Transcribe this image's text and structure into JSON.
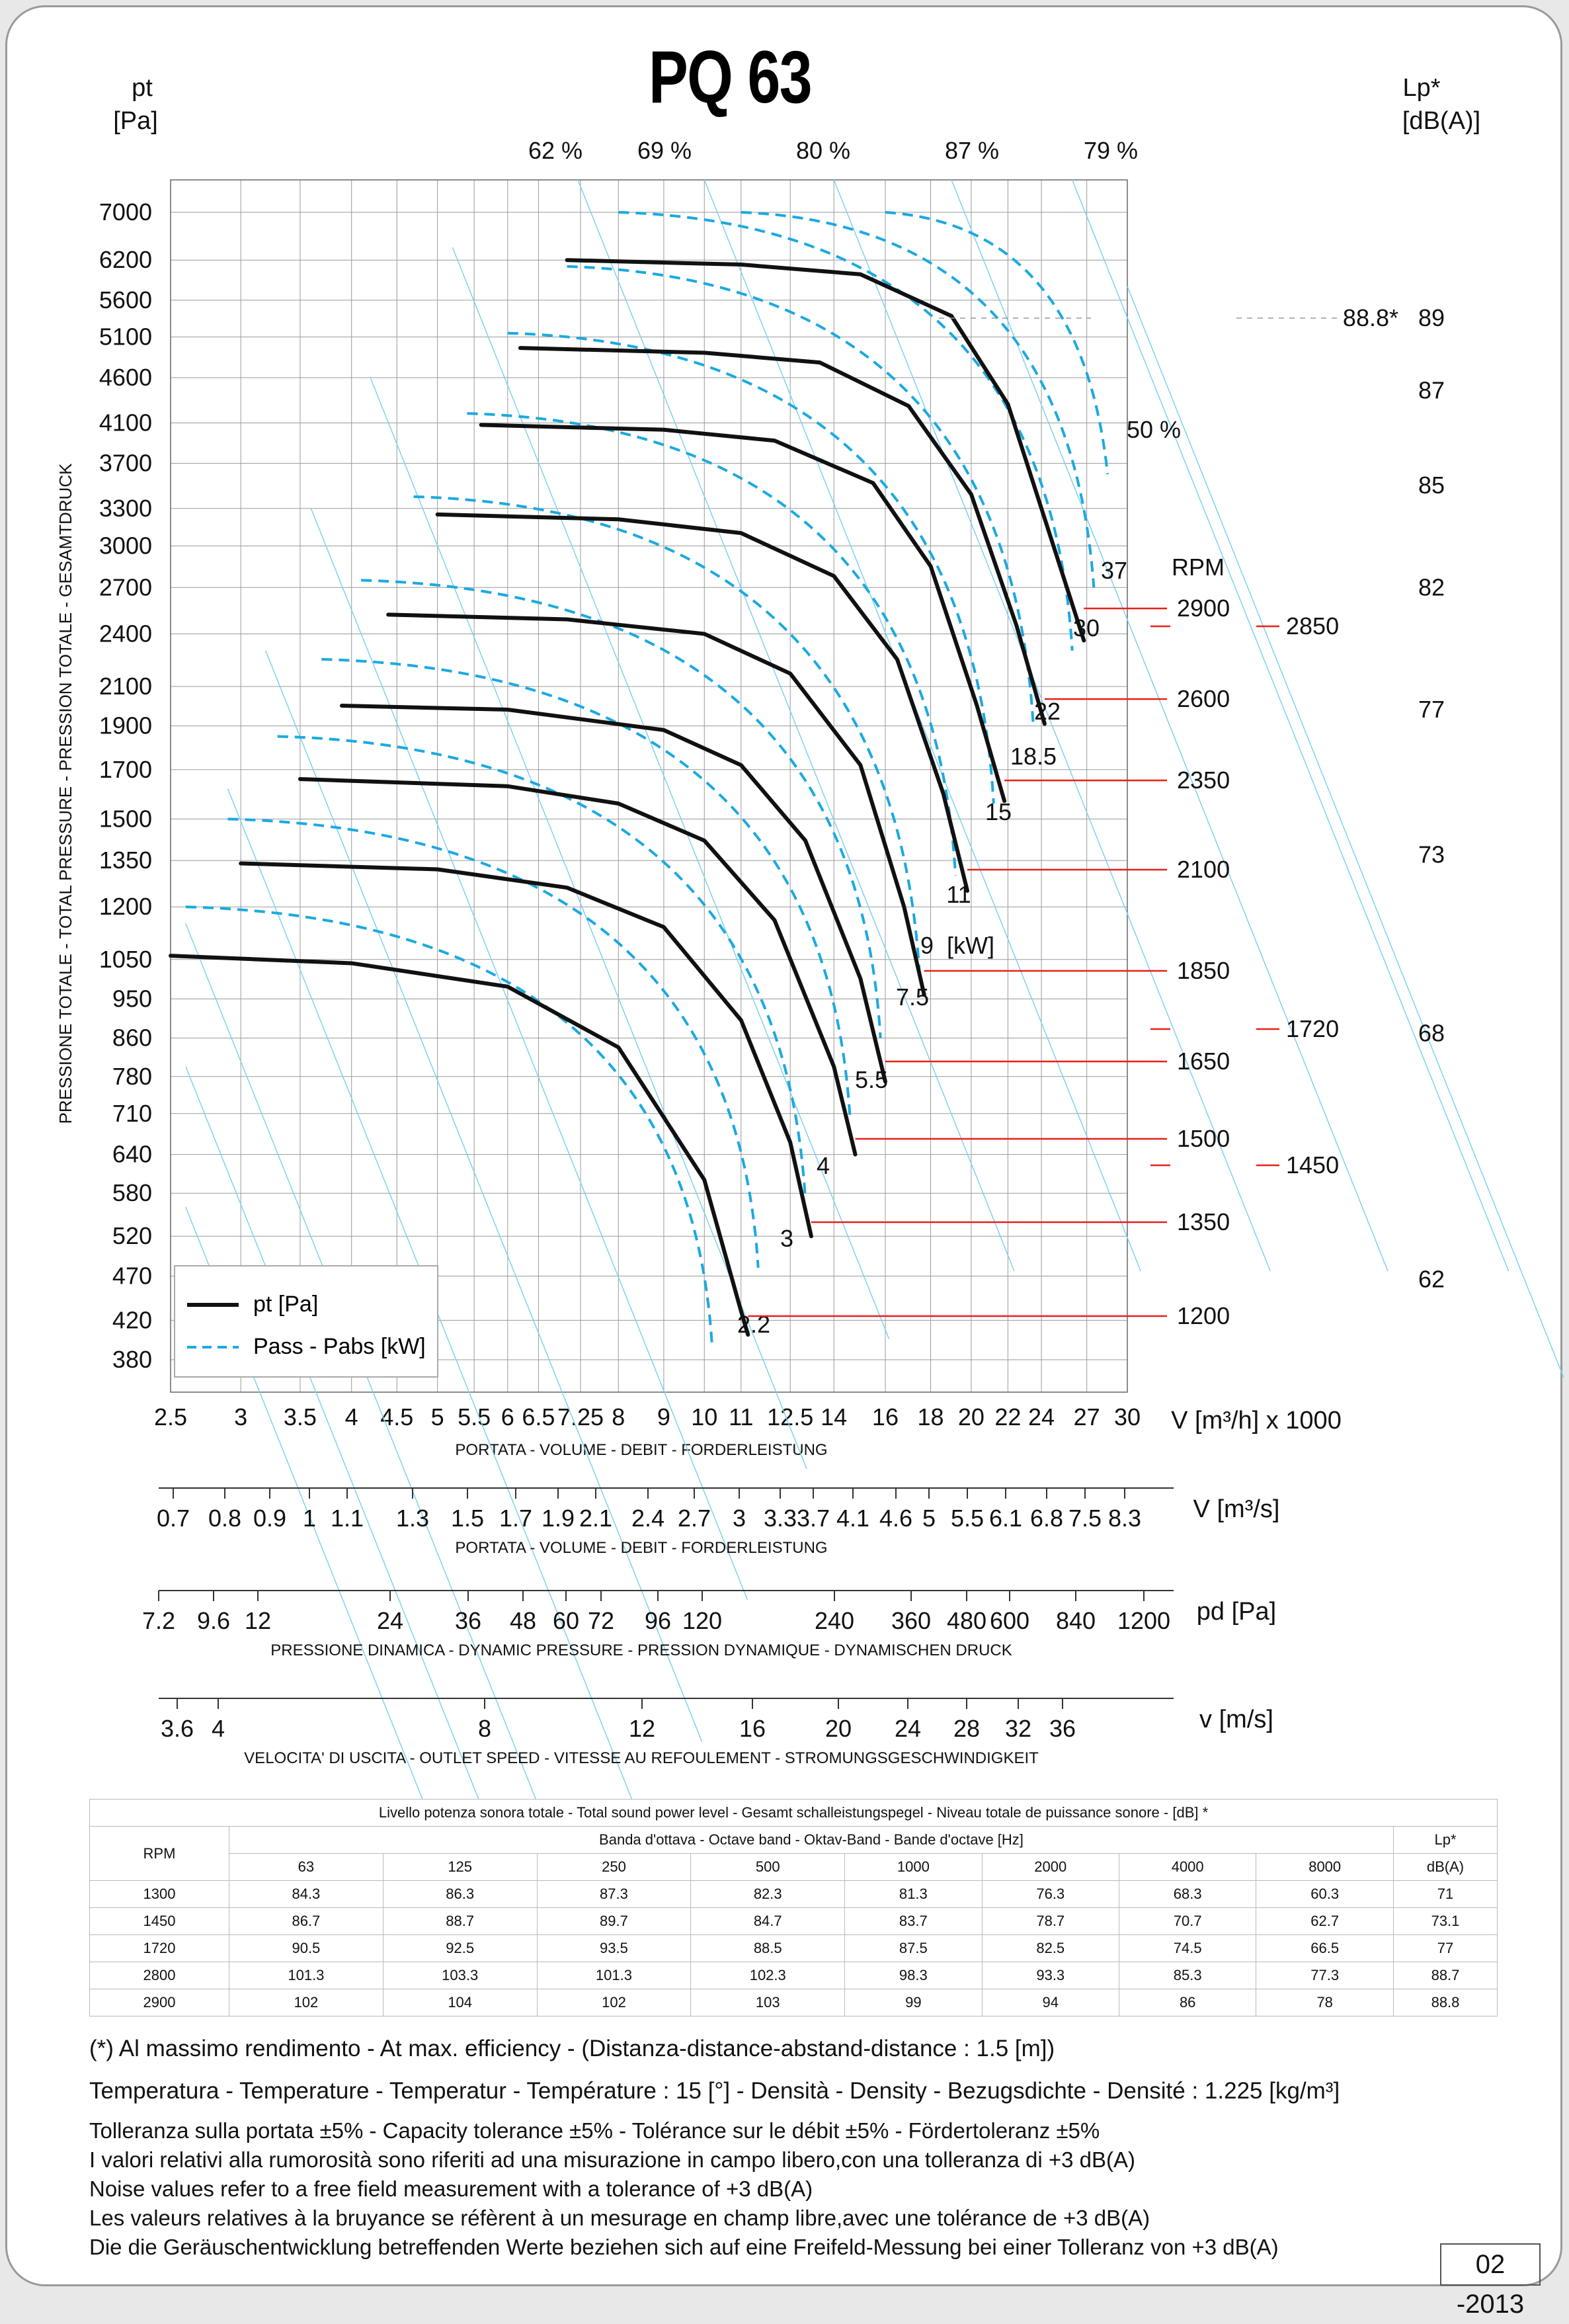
{
  "title": "PQ 63",
  "left_axis": {
    "unit_top": "pt",
    "unit_bottom": "[Pa]",
    "label": "PRESSIONE TOTALE - TOTAL PRESSURE - PRESSION TOTALE - GESAMTDRUCK"
  },
  "right_axis": {
    "unit_top": "Lp*",
    "unit_bottom": "[dB(A)]"
  },
  "legend": {
    "solid": "pt [Pa]",
    "dashed": "Pass - Pabs [kW]"
  },
  "rpm_header": "RPM",
  "kw_unit": "[kW]",
  "colors": {
    "pressure_curve": "#111111",
    "power_curve": "#1ba9e0",
    "efficiency_line": "#7fd0f2",
    "rpm_line": "#e8201a",
    "grid": "#9a9a9a"
  },
  "chart_data": {
    "type": "line",
    "title": "PQ 63",
    "x_axis": {
      "label": "PORTATA - VOLUME - DEBIT - FORDERLEISTUNG",
      "unit": "V [m³/h]  x 1000",
      "scale": "log",
      "ticks": [
        "2.5",
        "3",
        "3.5",
        "4",
        "4.5",
        "5",
        "5.5",
        "6",
        "6.5",
        "7.25",
        "8",
        "9",
        "10",
        "11",
        "12.5",
        "14",
        "16",
        "18",
        "20",
        "22",
        "24",
        "27",
        "30"
      ]
    },
    "y_axis": {
      "label": "PRESSIONE TOTALE - TOTAL PRESSURE - PRESSION TOTALE - GESAMTDRUCK",
      "unit": "pt [Pa]",
      "scale": "log",
      "ticks": [
        "7000",
        "6200",
        "5600",
        "5100",
        "4600",
        "4100",
        "3700",
        "3300",
        "3000",
        "2700",
        "2400",
        "2100",
        "1900",
        "1700",
        "1500",
        "1350",
        "1200",
        "1050",
        "950",
        "860",
        "780",
        "710",
        "640",
        "580",
        "520",
        "470",
        "420",
        "380"
      ]
    },
    "lp_axis": {
      "unit": "Lp* [dB(A)]",
      "ticks": [
        {
          "label": "89",
          "pt": 5350
        },
        {
          "label": "87",
          "pt": 4450
        },
        {
          "label": "85",
          "pt": 3500
        },
        {
          "label": "82",
          "pt": 2700
        },
        {
          "label": "77",
          "pt": 1980
        },
        {
          "label": "73",
          "pt": 1370
        },
        {
          "label": "68",
          "pt": 870
        },
        {
          "label": "62",
          "pt": 466
        }
      ],
      "max_efficiency_note": "88.8*"
    },
    "series": [
      {
        "rpm": "1200",
        "points": [
          [
            2.5,
            1060
          ],
          [
            4,
            1040
          ],
          [
            6,
            980
          ],
          [
            8,
            840
          ],
          [
            10,
            600
          ],
          [
            11,
            430
          ],
          [
            11.2,
            405
          ]
        ]
      },
      {
        "rpm": "1350",
        "points": [
          [
            3,
            1340
          ],
          [
            5,
            1320
          ],
          [
            7,
            1260
          ],
          [
            9,
            1140
          ],
          [
            11,
            900
          ],
          [
            12.5,
            660
          ],
          [
            13.2,
            520
          ]
        ]
      },
      {
        "rpm": "1500",
        "points": [
          [
            3.5,
            1660
          ],
          [
            6,
            1630
          ],
          [
            8,
            1560
          ],
          [
            10,
            1420
          ],
          [
            12,
            1160
          ],
          [
            14,
            800
          ],
          [
            14.8,
            640
          ]
        ]
      },
      {
        "rpm": "1650",
        "points": [
          [
            3.9,
            2000
          ],
          [
            6,
            1980
          ],
          [
            9,
            1880
          ],
          [
            11,
            1720
          ],
          [
            13,
            1420
          ],
          [
            15,
            1000
          ],
          [
            16,
            770
          ]
        ]
      },
      {
        "rpm": "1850",
        "points": [
          [
            4.4,
            2520
          ],
          [
            7,
            2490
          ],
          [
            10,
            2400
          ],
          [
            12.5,
            2170
          ],
          [
            15,
            1720
          ],
          [
            16.8,
            1200
          ],
          [
            17.7,
            960
          ]
        ]
      },
      {
        "rpm": "2100",
        "points": [
          [
            5,
            3250
          ],
          [
            8,
            3210
          ],
          [
            11,
            3100
          ],
          [
            14,
            2780
          ],
          [
            16.5,
            2250
          ],
          [
            18.6,
            1600
          ],
          [
            19.8,
            1250
          ]
        ]
      },
      {
        "rpm": "2350",
        "points": [
          [
            5.6,
            4080
          ],
          [
            9,
            4030
          ],
          [
            12,
            3920
          ],
          [
            15.5,
            3520
          ],
          [
            18,
            2850
          ],
          [
            20.3,
            2000
          ],
          [
            21.8,
            1570
          ]
        ]
      },
      {
        "rpm": "2600",
        "points": [
          [
            6.2,
            4960
          ],
          [
            10,
            4900
          ],
          [
            13.5,
            4780
          ],
          [
            17,
            4280
          ],
          [
            20,
            3420
          ],
          [
            22.5,
            2450
          ],
          [
            24.2,
            1910
          ]
        ]
      },
      {
        "rpm": "2900",
        "points": [
          [
            7,
            6200
          ],
          [
            11,
            6130
          ],
          [
            15,
            5980
          ],
          [
            19,
            5380
          ],
          [
            22,
            4300
          ],
          [
            24.5,
            3100
          ],
          [
            26.8,
            2360
          ]
        ]
      }
    ],
    "power_labels": [
      "2.2",
      "3",
      "4",
      "5.5",
      "7.5",
      "9",
      "11",
      "15",
      "18.5",
      "22",
      "30",
      "37"
    ],
    "efficiency_labels": [
      "62 %",
      "69 %",
      "80 %",
      "87 %",
      "79 %",
      "50 %"
    ],
    "rpm_labels": [
      "2900",
      "2600",
      "2350",
      "2100",
      "1850",
      "1650",
      "1500",
      "1350",
      "1200"
    ],
    "rpm_extra": [
      "2850",
      "1720",
      "1450"
    ]
  },
  "secondary_axes": {
    "flow_m3s": {
      "unit": "V  [m³/s]",
      "label": "PORTATA - VOLUME - DEBIT - FORDERLEISTUNG",
      "ticks": [
        "0.7",
        "0.8",
        "0.9",
        "1",
        "1.1",
        "1.3",
        "1.5",
        "1.7",
        "1.9",
        "2.1",
        "2.4",
        "2.7",
        "3",
        "3.3",
        "3.7",
        "4.1",
        "4.6",
        "5",
        "5.5",
        "6.1",
        "6.8",
        "7.5",
        "8.3"
      ]
    },
    "dyn_pressure": {
      "unit": "pd  [Pa]",
      "label": "PRESSIONE DINAMICA - DYNAMIC PRESSURE - PRESSION DYNAMIQUE - DYNAMISCHEN DRUCK",
      "ticks": [
        "7.2",
        "9.6",
        "12",
        "24",
        "36",
        "48",
        "60",
        "72",
        "96",
        "120",
        "240",
        "360",
        "480",
        "600",
        "840",
        "1200"
      ]
    },
    "velocity": {
      "unit": "v  [m/s]",
      "label": "VELOCITA' DI USCITA - OUTLET SPEED - VITESSE AU REFOULEMENT - STROMUNGSGESCHWINDIGKEIT",
      "ticks": [
        "3.6",
        "4",
        "8",
        "12",
        "16",
        "20",
        "24",
        "28",
        "32",
        "36"
      ]
    }
  },
  "sound_table": {
    "caption": "Livello potenza sonora totale - Total sound power level - Gesamt schalleistungspegel - Niveau totale de puissance sonore - [dB]   *",
    "band_caption": "Banda d'ottava - Octave band - Oktav-Band - Bande d'octave [Hz]",
    "rpm_header": "RPM",
    "lp_header": "Lp*",
    "lp_unit": "dB(A)",
    "bands": [
      "63",
      "125",
      "250",
      "500",
      "1000",
      "2000",
      "4000",
      "8000"
    ],
    "rows": [
      {
        "rpm": "1300",
        "values": [
          "84.3",
          "86.3",
          "87.3",
          "82.3",
          "81.3",
          "76.3",
          "68.3",
          "60.3"
        ],
        "lp": "71"
      },
      {
        "rpm": "1450",
        "values": [
          "86.7",
          "88.7",
          "89.7",
          "84.7",
          "83.7",
          "78.7",
          "70.7",
          "62.7"
        ],
        "lp": "73.1"
      },
      {
        "rpm": "1720",
        "values": [
          "90.5",
          "92.5",
          "93.5",
          "88.5",
          "87.5",
          "82.5",
          "74.5",
          "66.5"
        ],
        "lp": "77"
      },
      {
        "rpm": "2800",
        "values": [
          "101.3",
          "103.3",
          "101.3",
          "102.3",
          "98.3",
          "93.3",
          "85.3",
          "77.3"
        ],
        "lp": "88.7"
      },
      {
        "rpm": "2900",
        "values": [
          "102",
          "104",
          "102",
          "103",
          "99",
          "94",
          "86",
          "78"
        ],
        "lp": "88.8"
      }
    ]
  },
  "notes": {
    "efficiency": "(*) Al massimo rendimento - At max. efficiency - (Distanza-distance-abstand-distance : 1.5 [m])",
    "conditions": "Temperatura - Temperature - Temperatur - Température : 15 [°]  -  Densità - Density - Bezugsdichte - Densité : 1.225 [kg/m³]",
    "tolerance": "Tolleranza sulla portata  ±5% - Capacity tolerance ±5% - Tolérance sur le débit ±5% - Fördertoleranz ±5%",
    "noise_it": "I valori relativi alla rumorosità sono riferiti ad una misurazione in campo libero,con una tolleranza di +3 dB(A)",
    "noise_en": "Noise values refer to a free field measurement with a tolerance of +3 dB(A)",
    "noise_fr": "Les valeurs relatives à la bruyance se réfèrent à un mesurage en champ libre,avec une tolérance de +3 dB(A)",
    "noise_de": "Die die Geräuschentwicklung betreffenden Werte beziehen sich auf eine Freifeld-Messung bei einer Tolleranz von +3 dB(A)"
  },
  "date_code": "02 -2013"
}
